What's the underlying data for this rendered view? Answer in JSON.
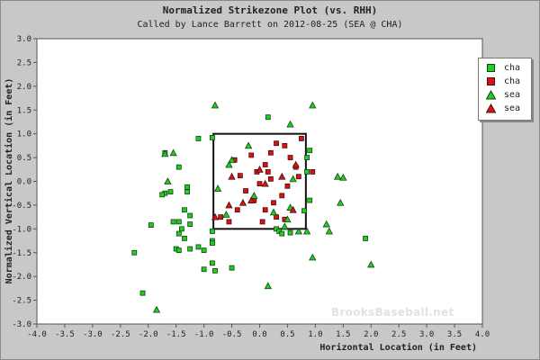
{
  "chart_data": {
    "type": "scatter",
    "title": "Normalized Strikezone Plot (vs. RHH)",
    "subtitle": "Called by Lance Barrett on 2012-08-25 (SEA @ CHA)",
    "xlabel": "Horizontal Location (in Feet)",
    "ylabel": "Normalized Vertical Location (in Feet)",
    "xlim": [
      -4.0,
      4.0
    ],
    "ylim": [
      -3.0,
      3.0
    ],
    "xticks": [
      "-4.0",
      "-3.5",
      "-3.0",
      "-2.5",
      "-2.0",
      "-1.5",
      "-1.0",
      "-0.5",
      "0.0",
      "0.5",
      "1.0",
      "1.5",
      "2.0",
      "2.5",
      "3.0",
      "3.5",
      "4.0"
    ],
    "yticks": [
      "3.0",
      "2.5",
      "2.0",
      "1.5",
      "1.0",
      "0.5",
      "0.0",
      "-0.5",
      "-1.0",
      "-1.5",
      "-2.0",
      "-2.5",
      "-3.0"
    ],
    "strike_zone": {
      "x": [
        -0.83,
        0.83
      ],
      "y": [
        -1.0,
        1.0
      ]
    },
    "legend_position": "top-right",
    "series": [
      {
        "name": "cha",
        "marker": "square",
        "color": "#22cc22",
        "points": [
          [
            -1.95,
            -0.92
          ],
          [
            -1.7,
            -0.25
          ],
          [
            -1.75,
            -0.28
          ],
          [
            -1.6,
            -0.22
          ],
          [
            -1.55,
            -0.85
          ],
          [
            -1.45,
            -0.85
          ],
          [
            -1.35,
            -0.6
          ],
          [
            -1.3,
            -0.12
          ],
          [
            -1.3,
            -0.22
          ],
          [
            -1.25,
            -0.72
          ],
          [
            -1.25,
            -0.9
          ],
          [
            -1.4,
            -1.0
          ],
          [
            -1.45,
            -1.1
          ],
          [
            -1.35,
            -1.2
          ],
          [
            -1.5,
            -1.42
          ],
          [
            -1.45,
            -1.45
          ],
          [
            -1.25,
            -1.42
          ],
          [
            -1.1,
            -1.38
          ],
          [
            -1.0,
            -1.45
          ],
          [
            -0.85,
            -1.05
          ],
          [
            -0.85,
            -1.25
          ],
          [
            -0.85,
            -1.3
          ],
          [
            -0.85,
            -1.72
          ],
          [
            -0.8,
            -1.88
          ],
          [
            -0.5,
            -1.82
          ],
          [
            -1.0,
            -1.85
          ],
          [
            -2.25,
            -1.5
          ],
          [
            -2.1,
            -2.35
          ],
          [
            -1.7,
            0.6
          ],
          [
            -1.45,
            0.3
          ],
          [
            -1.1,
            0.9
          ],
          [
            0.15,
            1.35
          ],
          [
            0.3,
            -1.0
          ],
          [
            0.35,
            -1.05
          ],
          [
            0.4,
            -1.1
          ],
          [
            0.55,
            -1.08
          ],
          [
            0.9,
            0.65
          ],
          [
            0.85,
            0.5
          ],
          [
            0.9,
            -0.4
          ],
          [
            0.8,
            -0.62
          ],
          [
            0.85,
            0.2
          ],
          [
            1.9,
            -1.2
          ],
          [
            -0.85,
            0.92
          ]
        ]
      },
      {
        "name": "cha",
        "marker": "square",
        "color": "#dd1111",
        "points": [
          [
            -0.45,
            0.45
          ],
          [
            -0.35,
            0.12
          ],
          [
            -0.15,
            0.55
          ],
          [
            -0.05,
            0.2
          ],
          [
            0.0,
            -0.05
          ],
          [
            0.1,
            0.35
          ],
          [
            0.2,
            0.6
          ],
          [
            0.3,
            0.8
          ],
          [
            0.45,
            0.75
          ],
          [
            0.55,
            0.5
          ],
          [
            0.65,
            0.3
          ],
          [
            0.7,
            0.1
          ],
          [
            0.5,
            -0.1
          ],
          [
            0.4,
            -0.3
          ],
          [
            0.25,
            -0.45
          ],
          [
            0.1,
            -0.6
          ],
          [
            0.3,
            -0.75
          ],
          [
            0.45,
            -0.8
          ],
          [
            -0.25,
            -0.2
          ],
          [
            -0.1,
            -0.4
          ],
          [
            -0.4,
            -0.6
          ],
          [
            -0.55,
            -0.85
          ],
          [
            0.05,
            -0.85
          ],
          [
            0.15,
            0.2
          ],
          [
            0.95,
            0.2
          ],
          [
            0.75,
            0.9
          ],
          [
            -0.7,
            -0.75
          ],
          [
            0.2,
            0.05
          ]
        ]
      },
      {
        "name": "sea",
        "marker": "triangle",
        "color": "#22cc22",
        "points": [
          [
            -0.8,
            1.6
          ],
          [
            0.55,
            1.2
          ],
          [
            0.95,
            1.6
          ],
          [
            -1.7,
            0.58
          ],
          [
            -1.55,
            0.6
          ],
          [
            -1.65,
            0.0
          ],
          [
            -0.5,
            0.45
          ],
          [
            -0.55,
            0.35
          ],
          [
            -0.2,
            0.75
          ],
          [
            0.25,
            -0.65
          ],
          [
            0.5,
            -0.8
          ],
          [
            0.55,
            -0.55
          ],
          [
            0.7,
            -1.05
          ],
          [
            0.85,
            -1.05
          ],
          [
            0.45,
            -0.95
          ],
          [
            1.4,
            0.1
          ],
          [
            1.5,
            0.08
          ],
          [
            1.45,
            -0.45
          ],
          [
            1.2,
            -0.9
          ],
          [
            1.25,
            -1.05
          ],
          [
            0.95,
            -1.6
          ],
          [
            2.0,
            -1.75
          ],
          [
            0.15,
            -2.2
          ],
          [
            -1.85,
            -2.7
          ],
          [
            -0.75,
            -0.15
          ],
          [
            -0.6,
            -0.7
          ],
          [
            0.6,
            0.05
          ],
          [
            -0.1,
            -0.3
          ]
        ]
      },
      {
        "name": "sea",
        "marker": "triangle",
        "color": "#dd1111",
        "points": [
          [
            -0.5,
            0.1
          ],
          [
            0.65,
            0.35
          ],
          [
            0.4,
            0.1
          ],
          [
            -0.15,
            -0.4
          ],
          [
            -0.55,
            -0.5
          ],
          [
            0.6,
            -0.6
          ],
          [
            -0.8,
            -0.75
          ],
          [
            0.0,
            0.25
          ],
          [
            0.1,
            -0.05
          ],
          [
            -0.3,
            -0.45
          ]
        ]
      }
    ]
  },
  "watermark": "BrooksBaseball.net"
}
